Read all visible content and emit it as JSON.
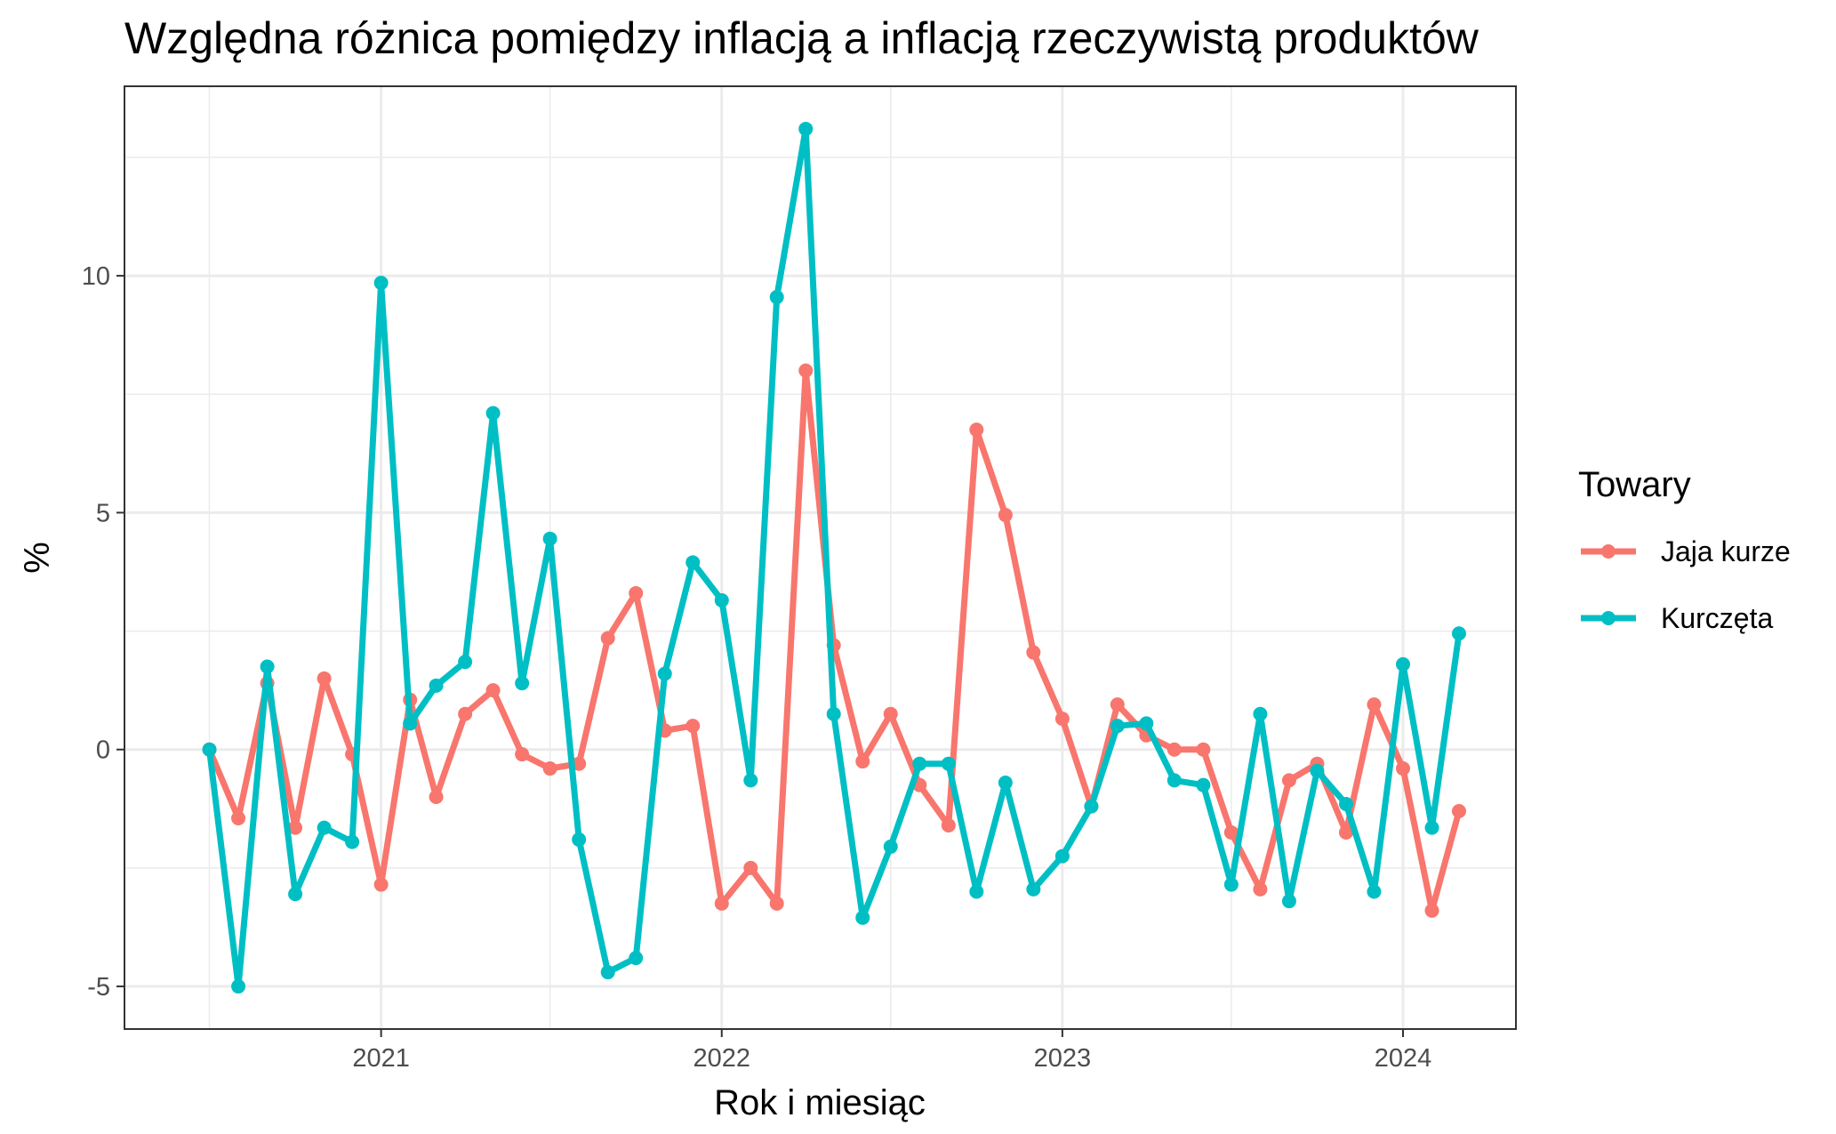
{
  "chart_data": {
    "type": "line",
    "title": "Względna różnica pomiędzy inflacją a inflacją rzeczywistą produktów",
    "xlabel": "Rok i miesiąc",
    "ylabel": "%",
    "x_ticks": [
      "2021",
      "2022",
      "2023",
      "2024"
    ],
    "y_ticks": [
      "-5",
      "0",
      "5",
      "10"
    ],
    "ylim": [
      -5.9,
      14
    ],
    "xlim": [
      "2020-04-01",
      "2024-05-01"
    ],
    "grid": true,
    "legend": {
      "title": "Towary",
      "position": "right"
    },
    "x": [
      "2020-07",
      "2020-08",
      "2020-09",
      "2020-10",
      "2020-11",
      "2020-12",
      "2021-01",
      "2021-02",
      "2021-03",
      "2021-04",
      "2021-05",
      "2021-06",
      "2021-07",
      "2021-08",
      "2021-09",
      "2021-10",
      "2021-11",
      "2021-12",
      "2022-01",
      "2022-02",
      "2022-03",
      "2022-04",
      "2022-05",
      "2022-06",
      "2022-07",
      "2022-08",
      "2022-09",
      "2022-10",
      "2022-11",
      "2022-12",
      "2023-01",
      "2023-02",
      "2023-03",
      "2023-04",
      "2023-05",
      "2023-06",
      "2023-07",
      "2023-08",
      "2023-09",
      "2023-10",
      "2023-11",
      "2023-12",
      "2024-01",
      "2024-02",
      "2024-03"
    ],
    "series": [
      {
        "name": "Jaja kurze",
        "color": "#F8766D",
        "values": [
          0,
          -1.45,
          1.4,
          -1.65,
          1.5,
          -0.1,
          -2.85,
          1.05,
          -1.0,
          0.75,
          1.25,
          -0.1,
          -0.4,
          -0.3,
          2.35,
          3.3,
          0.4,
          0.5,
          -3.25,
          -2.5,
          -3.25,
          8.0,
          2.2,
          -0.25,
          0.75,
          -0.75,
          -1.6,
          6.75,
          4.95,
          2.05,
          0.65,
          -1.2,
          0.95,
          0.3,
          0.0,
          0.0,
          -1.75,
          -2.95,
          -0.65,
          -0.3,
          -1.75,
          0.95,
          -0.4,
          -3.4,
          -1.3
        ]
      },
      {
        "name": "Kurczęta",
        "color": "#00BFC4",
        "values": [
          0,
          -5.0,
          1.75,
          -3.05,
          -1.65,
          -1.95,
          9.85,
          0.55,
          1.35,
          1.85,
          7.1,
          1.4,
          4.45,
          -1.9,
          -4.7,
          -4.4,
          1.6,
          3.95,
          3.15,
          -0.65,
          9.55,
          13.1,
          0.75,
          -3.55,
          -2.05,
          -0.3,
          -0.3,
          -3.0,
          -0.7,
          -2.95,
          -2.25,
          -1.2,
          0.5,
          0.55,
          -0.65,
          -0.75,
          -2.85,
          0.75,
          -3.2,
          -0.45,
          -1.15,
          -3.0,
          1.8,
          -1.65,
          2.45
        ]
      }
    ]
  }
}
